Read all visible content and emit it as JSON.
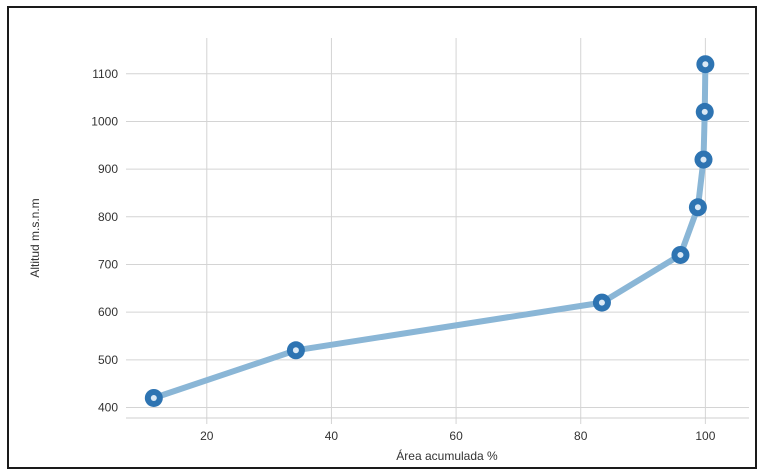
{
  "chart_data": {
    "type": "line",
    "xlabel": "Área acumulada %",
    "ylabel": "Altitud m.s.n.m",
    "xlim": [
      8,
      107
    ],
    "ylim": [
      378,
      1175
    ],
    "xticks": [
      "20",
      "40",
      "60",
      "80",
      "100"
    ],
    "yticks": [
      "400",
      "500",
      "600",
      "700",
      "800",
      "900",
      "1000",
      "1100"
    ],
    "grid": true,
    "series": [
      {
        "x": [
          11.5,
          34.3,
          83.4,
          96.0,
          98.8,
          99.7,
          99.9,
          100.0
        ],
        "y": [
          420,
          520,
          620,
          720,
          820,
          920,
          1020,
          1120
        ]
      }
    ],
    "colors": {
      "line": "#8ab6d6",
      "marker": "#2e74b2",
      "grid": "#d4d4d4"
    }
  }
}
